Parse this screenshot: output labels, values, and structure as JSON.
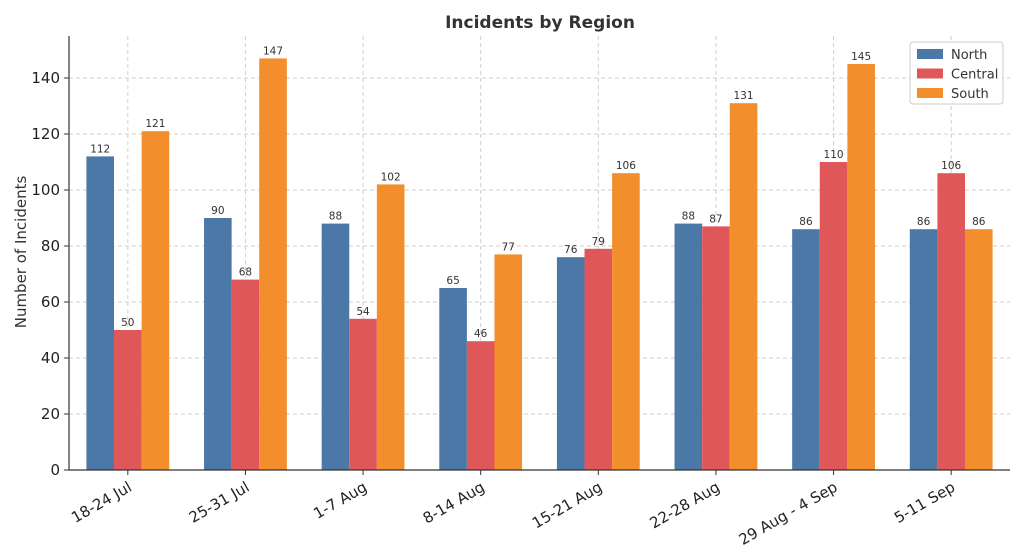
{
  "chart_data": {
    "type": "bar",
    "title": "Incidents by Region",
    "xlabel": "",
    "ylabel": "Number of Incidents",
    "ylim": [
      0,
      155
    ],
    "yticks": [
      0,
      20,
      40,
      60,
      80,
      100,
      120,
      140
    ],
    "grid": true,
    "legend_position": "top-right",
    "categories": [
      "18-24 Jul",
      "25-31 Jul",
      "1-7 Aug",
      "8-14 Aug",
      "15-21 Aug",
      "22-28 Aug",
      "29 Aug - 4 Sep",
      "5-11 Sep"
    ],
    "series": [
      {
        "name": "North",
        "color": "#4c78a8",
        "values": [
          112,
          90,
          88,
          65,
          76,
          88,
          86,
          86
        ]
      },
      {
        "name": "Central",
        "color": "#e05759",
        "values": [
          50,
          68,
          54,
          46,
          79,
          87,
          110,
          106
        ]
      },
      {
        "name": "South",
        "color": "#f28e2b",
        "values": [
          121,
          147,
          102,
          77,
          106,
          131,
          145,
          86
        ]
      }
    ]
  }
}
